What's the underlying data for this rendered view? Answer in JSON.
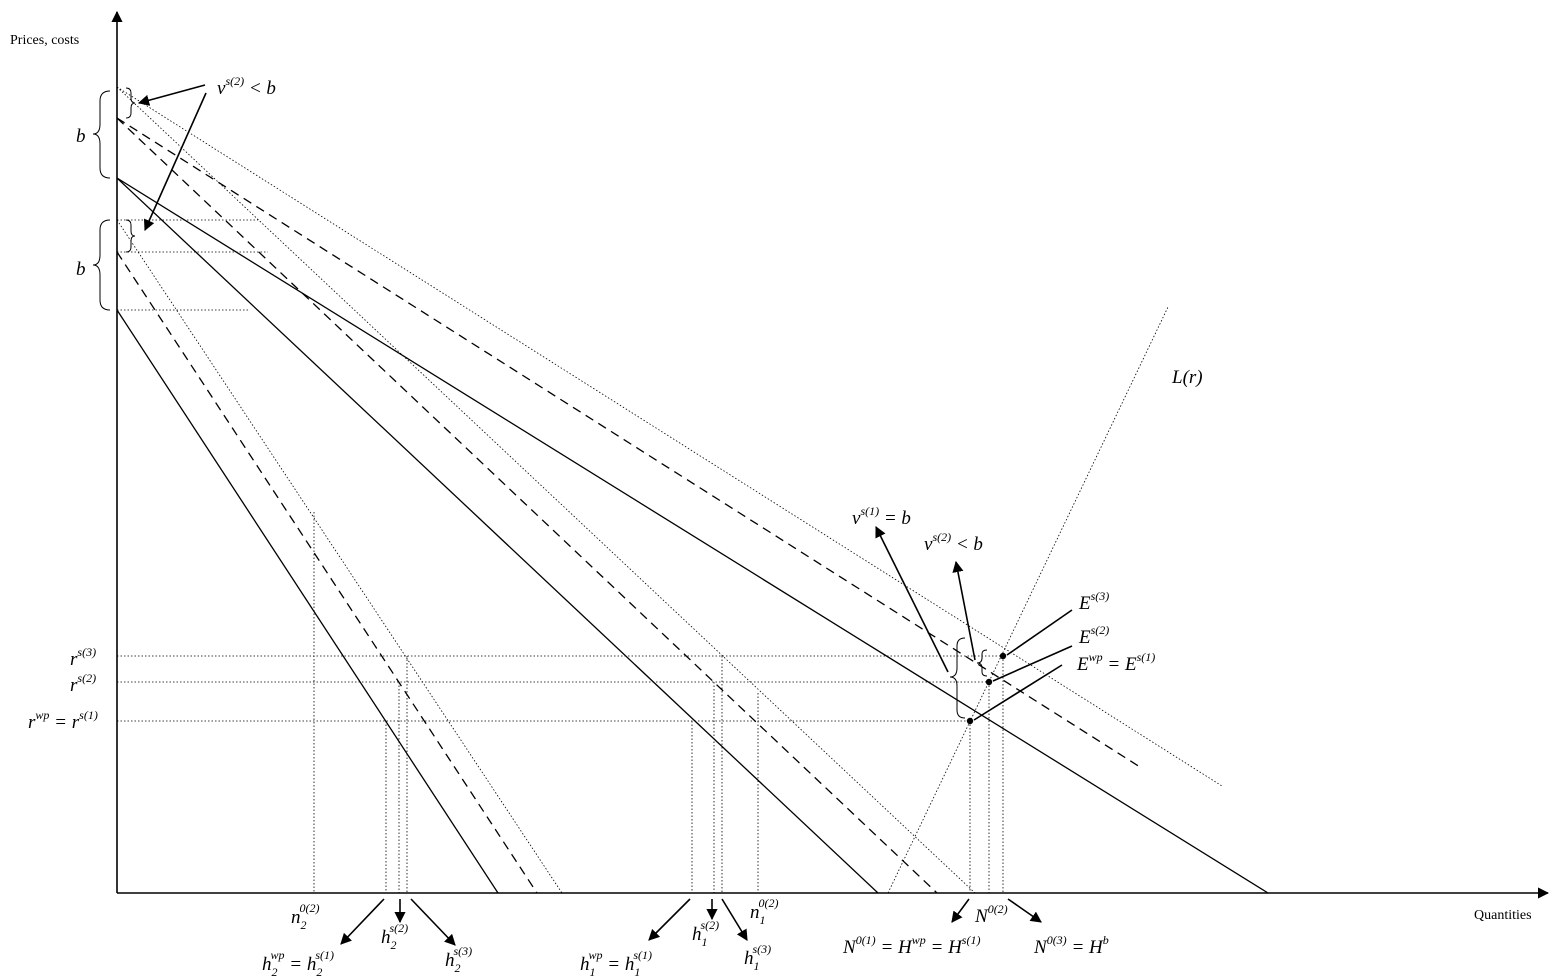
{
  "axes": {
    "y_label": "Prices, costs",
    "x_label": "Quantities"
  },
  "left_labels": {
    "b_upper": "b",
    "b_lower": "b",
    "v_s2_top": {
      "base": "v",
      "sup": "s(2)",
      "rest": " < b"
    }
  },
  "y_ticks": {
    "r_s3": {
      "base": "r",
      "sup": "s(3)"
    },
    "r_s2": {
      "base": "r",
      "sup": "s(2)"
    },
    "r_wp": {
      "base": "r",
      "sup": "wp",
      "eq": " = ",
      "base2": "r",
      "sup2": "s(1)"
    }
  },
  "curve_labels": {
    "L_r": "L(r)"
  },
  "equilibria": {
    "E_s3": {
      "base": "E",
      "sup": "s(3)"
    },
    "E_s2": {
      "base": "E",
      "sup": "s(2)"
    },
    "E_wp": {
      "base": "E",
      "sup": "wp",
      "eq": " = ",
      "base2": "E",
      "sup2": "s(1)"
    }
  },
  "subsidy_labels": {
    "v_s1": {
      "base": "v",
      "sup": "s(1)",
      "rest": " = b"
    },
    "v_s2": {
      "base": "v",
      "sup": "s(2)",
      "rest": " < b"
    }
  },
  "x_ticks": {
    "n2_02": {
      "base": "n",
      "sub": "2",
      "sup": "0(2)"
    },
    "h2_wp": {
      "base": "h",
      "sub": "2",
      "sup": "wp",
      "eq": " = ",
      "base2": "h",
      "sub2": "2",
      "sup2": "s(1)"
    },
    "h2_s2": {
      "base": "h",
      "sub": "2",
      "sup": "s(2)"
    },
    "h2_s3": {
      "base": "h",
      "sub": "2",
      "sup": "s(3)"
    },
    "h1_wp": {
      "base": "h",
      "sub": "1",
      "sup": "wp",
      "eq": " = ",
      "base2": "h",
      "sub2": "1",
      "sup2": "s(1)"
    },
    "h1_s2": {
      "base": "h",
      "sub": "1",
      "sup": "s(2)"
    },
    "n1_02": {
      "base": "n",
      "sub": "1",
      "sup": "0(2)"
    },
    "h1_s3": {
      "base": "h",
      "sub": "1",
      "sup": "s(3)"
    },
    "N_01": {
      "base": "N",
      "sup": "0(1)",
      "mid": " = H",
      "msup": "wp",
      "tail": " = H",
      "tsup": "s(1)"
    },
    "N_02": {
      "base": "N",
      "sup": "0(2)"
    },
    "N_03": {
      "base": "N",
      "sup": "0(3)",
      "mid": " = H",
      "msup": "b"
    }
  }
}
